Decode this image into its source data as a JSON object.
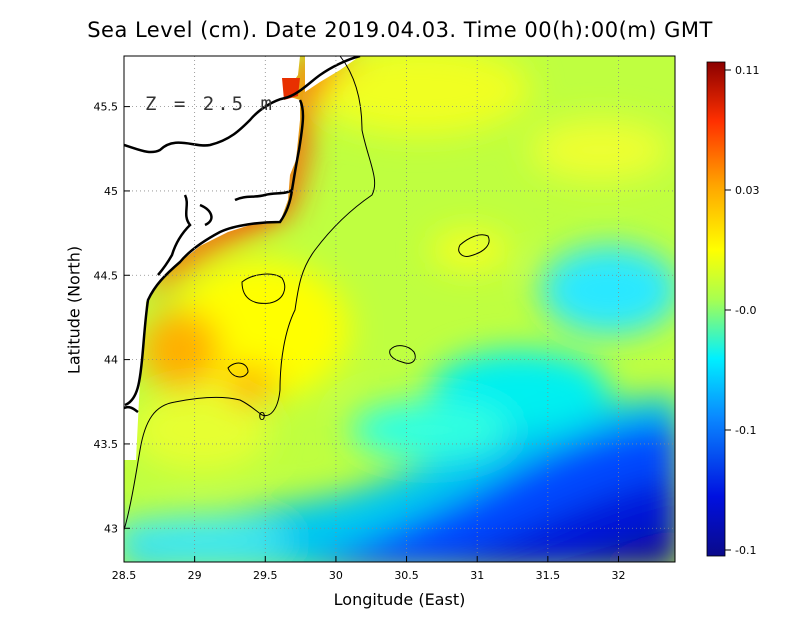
{
  "chart_data": {
    "type": "heatmap",
    "title": "Sea Level (cm). Date 2019.04.03. Time 00(h):00(m) GMT",
    "xlabel": "Longitude (East)",
    "ylabel": "Latitude (North)",
    "annotation": "Z = 2.5 m",
    "xlim": [
      28.5,
      32.4
    ],
    "ylim": [
      42.8,
      45.8
    ],
    "x_ticks": [
      28.5,
      29,
      29.5,
      30,
      30.5,
      31,
      31.5,
      32
    ],
    "x_tick_labels": [
      "28.5",
      "29",
      "29.5",
      "30",
      "30.5",
      "31",
      "31.5",
      "32"
    ],
    "y_ticks": [
      43,
      43.5,
      44,
      44.5,
      45,
      45.5
    ],
    "y_tick_labels": [
      "43",
      "43.5",
      "44",
      "44.5",
      "45",
      "45.5"
    ],
    "colorbar_labels": [
      "0.11",
      "0.03",
      "-0.0",
      "-0.1",
      "-0.1"
    ],
    "colorscale": [
      "#0a0a8a",
      "#0010e0",
      "#0a88ff",
      "#00f0ff",
      "#a8ff50",
      "#ffff00",
      "#ffa500",
      "#ff3000",
      "#8b0000"
    ],
    "contour_label": "0",
    "grid": true
  }
}
